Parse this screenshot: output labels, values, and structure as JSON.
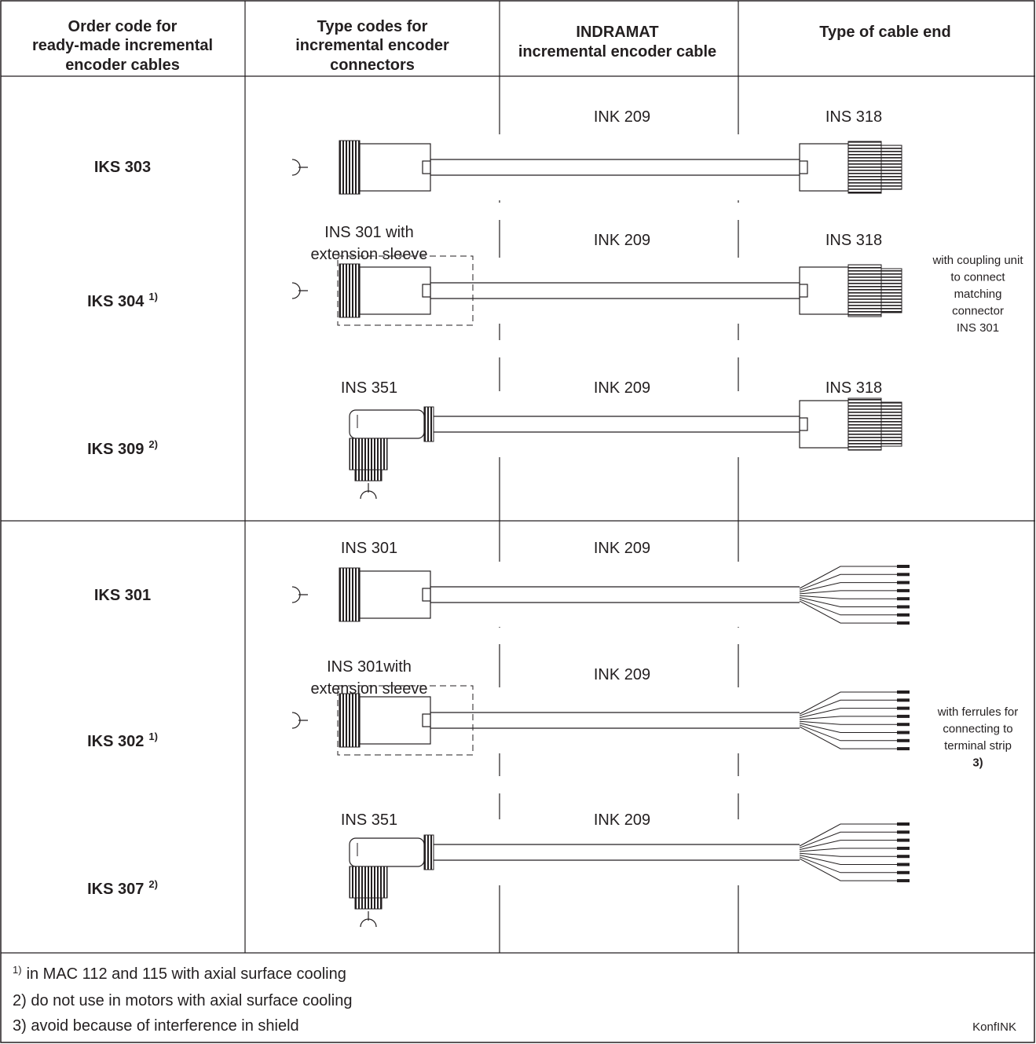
{
  "header": {
    "columns": [
      [
        "Order code for",
        "ready-made incremental",
        "encoder cables"
      ],
      [
        "Type codes for",
        "incremental encoder",
        "connectors"
      ],
      [
        "INDRAMAT",
        "incremental encoder cable"
      ],
      [
        "Type of cable end"
      ]
    ]
  },
  "rows": [
    {
      "order_code": "IKS 303",
      "cable": "INK 209",
      "cable_end": "INS 318"
    },
    {
      "order_code": "IKS 304",
      "note_mark": "1)",
      "connector": [
        "INS 301 with",
        "extension sleeve"
      ],
      "cable": "INK 209",
      "cable_end": "INS 318",
      "end_note": [
        "with coupling unit",
        "to connect",
        "matching",
        "connector",
        "INS 301"
      ]
    },
    {
      "order_code": "IKS 309",
      "note_mark": "2)",
      "connector": [
        "INS 351"
      ],
      "cable": "INK 209",
      "cable_end": "INS 318"
    },
    {
      "order_code": "IKS 301",
      "connector": [
        "INS 301"
      ],
      "cable": "INK 209"
    },
    {
      "order_code": "IKS 302",
      "note_mark": "1)",
      "connector": [
        "INS 301with",
        "extension sleeve"
      ],
      "cable": "INK 209",
      "end_note": [
        "with ferrules for",
        "connecting to",
        "terminal strip",
        "3)"
      ]
    },
    {
      "order_code": "IKS 307",
      "note_mark": "2)",
      "connector": [
        "INS 351"
      ],
      "cable": "INK 209"
    }
  ],
  "footnotes": [
    {
      "mark": "1)",
      "text": "in MAC 112 and 115 with axial surface cooling"
    },
    "2) do not use in motors with axial surface cooling",
    "3) avoid because of interference in shield"
  ],
  "code": "KonfINK"
}
